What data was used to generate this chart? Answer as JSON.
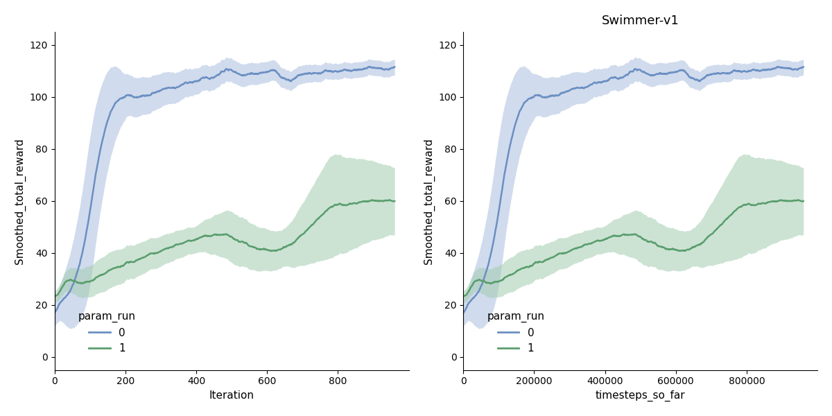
{
  "title_right": "Swimmer-v1",
  "ylabel": "Smoothed_total_reward",
  "xlabel_left": "Iteration",
  "xlabel_right": "timesteps_so_far",
  "ylim": [
    -5,
    125
  ],
  "yticks": [
    0,
    20,
    40,
    60,
    80,
    100,
    120
  ],
  "xlim_left": [
    0,
    1000
  ],
  "xlim_right": [
    0,
    1000000
  ],
  "xticks_left": [
    0,
    200,
    400,
    600,
    800
  ],
  "xticks_right": [
    0,
    200000,
    400000,
    600000,
    800000
  ],
  "blue_color": "#6b8fc2",
  "green_color": "#5a9e6e",
  "blue_fill": "#aabfdf",
  "green_fill": "#a3ccb0",
  "legend_title": "param_run",
  "legend_labels": [
    "0",
    "1"
  ],
  "background_color": "#ffffff",
  "font_size": 11
}
